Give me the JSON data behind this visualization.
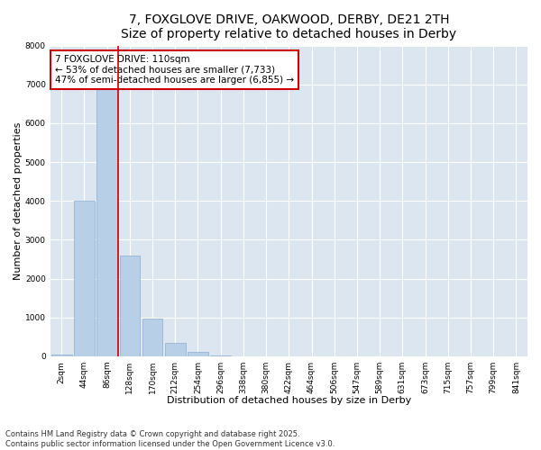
{
  "title_line1": "7, FOXGLOVE DRIVE, OAKWOOD, DERBY, DE21 2TH",
  "title_line2": "Size of property relative to detached houses in Derby",
  "xlabel": "Distribution of detached houses by size in Derby",
  "ylabel": "Number of detached properties",
  "categories": [
    "2sqm",
    "44sqm",
    "86sqm",
    "128sqm",
    "170sqm",
    "212sqm",
    "254sqm",
    "296sqm",
    "338sqm",
    "380sqm",
    "422sqm",
    "464sqm",
    "506sqm",
    "547sqm",
    "589sqm",
    "631sqm",
    "673sqm",
    "715sqm",
    "757sqm",
    "799sqm",
    "841sqm"
  ],
  "values": [
    50,
    4000,
    7350,
    2600,
    970,
    340,
    110,
    30,
    8,
    2,
    1,
    0,
    0,
    0,
    0,
    0,
    0,
    0,
    0,
    0,
    0
  ],
  "bar_color": "#b8cfe8",
  "bar_edge_color": "#8aaed0",
  "vline_x": 2.5,
  "vline_color": "#cc0000",
  "annotation_box_text": "7 FOXGLOVE DRIVE: 110sqm\n← 53% of detached houses are smaller (7,733)\n47% of semi-detached houses are larger (6,855) →",
  "annotation_box_color": "#cc0000",
  "annotation_bg_color": "#ffffff",
  "ylim": [
    0,
    8000
  ],
  "yticks": [
    0,
    1000,
    2000,
    3000,
    4000,
    5000,
    6000,
    7000,
    8000
  ],
  "bg_color": "#dce6f0",
  "grid_color": "#ffffff",
  "footer_line1": "Contains HM Land Registry data © Crown copyright and database right 2025.",
  "footer_line2": "Contains public sector information licensed under the Open Government Licence v3.0.",
  "title_fontsize": 10,
  "axis_label_fontsize": 8,
  "tick_fontsize": 6.5,
  "annotation_fontsize": 7.5,
  "footer_fontsize": 6
}
